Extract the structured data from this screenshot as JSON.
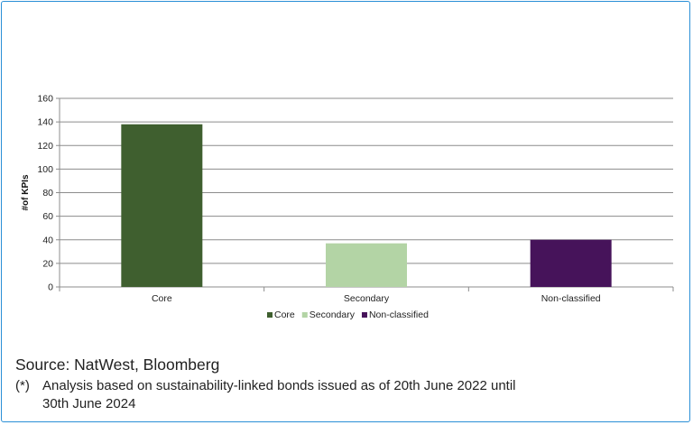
{
  "chart_data": {
    "type": "bar",
    "categories": [
      "Core",
      "Secondary",
      "Non-classified"
    ],
    "values": [
      138,
      37,
      40
    ],
    "colors": [
      "#3f5f2f",
      "#b3d4a5",
      "#46135a"
    ],
    "ylabel": "#of KPIs",
    "ylim": [
      0,
      160
    ],
    "yticks": [
      0,
      20,
      40,
      60,
      80,
      100,
      120,
      140,
      160
    ],
    "grid": true,
    "legend": {
      "placement": "bottom",
      "entries": [
        "Core",
        "Secondary",
        "Non-classified"
      ]
    }
  },
  "source_text": "Source: NatWest, Bloomberg",
  "footnote": {
    "marker": "(*)",
    "line1": "Analysis based on sustainability-linked bonds issued as of 20th June 2022 until",
    "line2": "30th June 2024"
  }
}
